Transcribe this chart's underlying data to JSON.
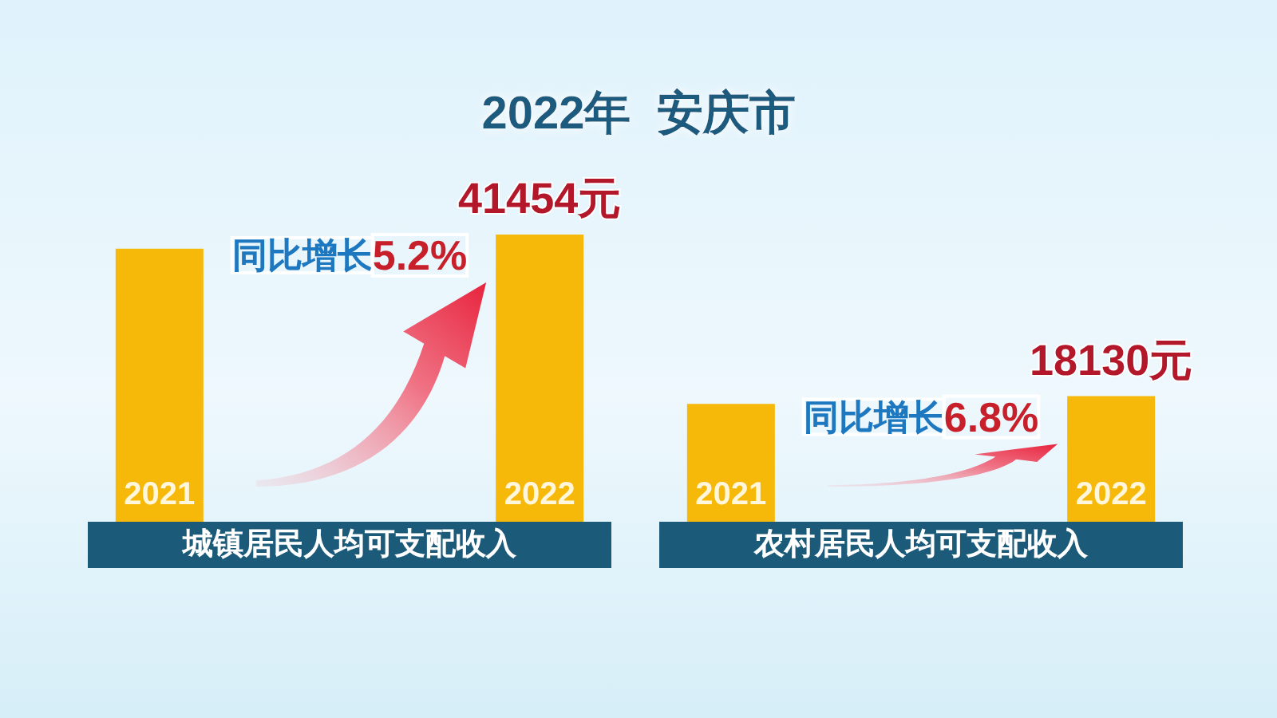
{
  "chart_data": {
    "type": "bar",
    "title": "2022年  安庆市",
    "categories": [
      "城镇居民人均可支配收入",
      "农村居民人均可支配收入"
    ],
    "tick_labels": "x",
    "series": [
      {
        "name": "2021",
        "color": "#f6b90a",
        "values": [
          39400,
          17000
        ]
      },
      {
        "name": "2022",
        "color": "#f6b90a",
        "values": [
          41454,
          18130
        ],
        "value_labels": [
          "41454元",
          "18130元"
        ]
      }
    ],
    "annotations": [
      "同比增长5.2%",
      "同比增长6.8%"
    ]
  }
}
